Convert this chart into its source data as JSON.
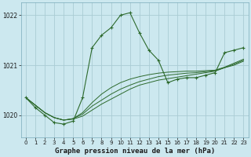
{
  "background_color": "#cce8ef",
  "grid_color": "#aaccd4",
  "line_color": "#2d6a2d",
  "title": "Graphe pression niveau de la mer (hPa)",
  "ylim": [
    1019.55,
    1022.25
  ],
  "xlim": [
    -0.5,
    23.5
  ],
  "yticks": [
    1020,
    1021,
    1022
  ],
  "xticks": [
    0,
    1,
    2,
    3,
    4,
    5,
    6,
    7,
    8,
    9,
    10,
    11,
    12,
    13,
    14,
    15,
    16,
    17,
    18,
    19,
    20,
    21,
    22,
    23
  ],
  "series_main": {
    "x": [
      0,
      1,
      2,
      3,
      4,
      5,
      6,
      7,
      8,
      9,
      10,
      11,
      12,
      13,
      14,
      15,
      16,
      17,
      18,
      19,
      20,
      21,
      22,
      23
    ],
    "y": [
      1020.35,
      1020.15,
      1020.0,
      1019.85,
      1019.82,
      1019.88,
      1020.35,
      1021.35,
      1021.6,
      1021.75,
      1022.0,
      1022.05,
      1021.65,
      1021.3,
      1021.1,
      1020.65,
      1020.72,
      1020.75,
      1020.75,
      1020.8,
      1020.85,
      1021.25,
      1021.3,
      1021.35
    ]
  },
  "series_smooth1": {
    "x": [
      0,
      1,
      2,
      3,
      4,
      5,
      6,
      7,
      8,
      9,
      10,
      11,
      12,
      13,
      14,
      15,
      16,
      17,
      18,
      19,
      20,
      21,
      22,
      23
    ],
    "y": [
      1020.35,
      1020.2,
      1020.05,
      1019.95,
      1019.9,
      1019.92,
      1019.98,
      1020.1,
      1020.22,
      1020.32,
      1020.42,
      1020.52,
      1020.6,
      1020.65,
      1020.7,
      1020.73,
      1020.76,
      1020.79,
      1020.82,
      1020.85,
      1020.88,
      1020.95,
      1021.0,
      1021.08
    ]
  },
  "series_smooth2": {
    "x": [
      0,
      1,
      2,
      3,
      4,
      5,
      6,
      7,
      8,
      9,
      10,
      11,
      12,
      13,
      14,
      15,
      16,
      17,
      18,
      19,
      20,
      21,
      22,
      23
    ],
    "y": [
      1020.35,
      1020.2,
      1020.05,
      1019.95,
      1019.9,
      1019.93,
      1020.02,
      1020.18,
      1020.3,
      1020.42,
      1020.52,
      1020.6,
      1020.67,
      1020.72,
      1020.77,
      1020.8,
      1020.82,
      1020.84,
      1020.85,
      1020.87,
      1020.89,
      1020.95,
      1021.02,
      1021.1
    ]
  },
  "series_smooth3": {
    "x": [
      0,
      1,
      2,
      3,
      4,
      5,
      6,
      7,
      8,
      9,
      10,
      11,
      12,
      13,
      14,
      15,
      16,
      17,
      18,
      19,
      20,
      21,
      22,
      23
    ],
    "y": [
      1020.35,
      1020.2,
      1020.05,
      1019.95,
      1019.9,
      1019.93,
      1020.05,
      1020.25,
      1020.42,
      1020.55,
      1020.65,
      1020.72,
      1020.77,
      1020.81,
      1020.84,
      1020.86,
      1020.87,
      1020.88,
      1020.88,
      1020.89,
      1020.9,
      1020.96,
      1021.04,
      1021.12
    ]
  }
}
